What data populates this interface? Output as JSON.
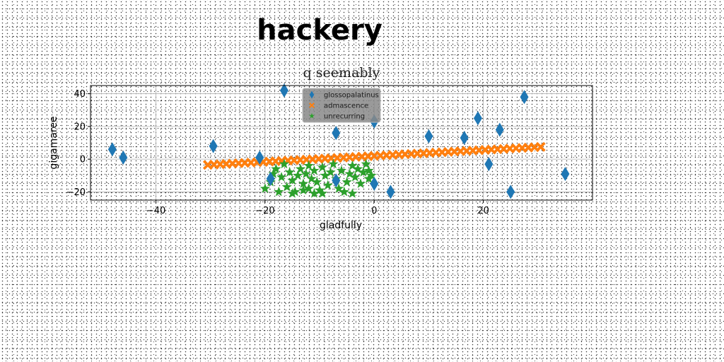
{
  "banner": {
    "title": "hackery"
  },
  "chart_data": {
    "type": "scatter",
    "title": "q seemably",
    "xlabel": "gladfully",
    "ylabel": "gigamaree",
    "xlim": [
      -52,
      40
    ],
    "ylim": [
      -25,
      45
    ],
    "xticks": [
      -40,
      -20,
      0,
      20
    ],
    "yticks": [
      -20,
      0,
      20,
      40
    ],
    "xtick_labels": [
      "−40",
      "−20",
      "0",
      "20"
    ],
    "ytick_labels": [
      "−20",
      "0",
      "20",
      "40"
    ],
    "grid": true,
    "legend_position": "top-center",
    "series": [
      {
        "name": "glossopalatinus",
        "marker": "thin-diamond",
        "color": "#1f77b4",
        "points": [
          [
            -48,
            6
          ],
          [
            -46,
            1
          ],
          [
            -29.5,
            8
          ],
          [
            -21,
            1
          ],
          [
            -19,
            -12
          ],
          [
            -16.5,
            42
          ],
          [
            -7,
            16
          ],
          [
            -7,
            -13
          ],
          [
            0,
            23
          ],
          [
            0,
            -15
          ],
          [
            3,
            -20
          ],
          [
            10,
            14
          ],
          [
            16.5,
            13
          ],
          [
            19,
            25
          ],
          [
            21,
            -3
          ],
          [
            23,
            18
          ],
          [
            25,
            -20
          ],
          [
            27.5,
            38
          ],
          [
            35,
            -9
          ]
        ]
      },
      {
        "name": "admascence",
        "marker": "x",
        "color": "#ff7f0e",
        "x_start": -30.5,
        "x_end": 30.5,
        "y_start": -3.5,
        "y_end": 7.5,
        "count": 55
      },
      {
        "name": "unrecurring",
        "marker": "star",
        "color": "#2ca02c",
        "points": [
          [
            -20,
            -18
          ],
          [
            -19,
            -14
          ],
          [
            -18,
            -6
          ],
          [
            -17.5,
            -20
          ],
          [
            -17,
            -11
          ],
          [
            -16.5,
            -3
          ],
          [
            -16,
            -17
          ],
          [
            -15.5,
            -8
          ],
          [
            -15,
            -13
          ],
          [
            -14.5,
            -20
          ],
          [
            -14,
            -10
          ],
          [
            -13.5,
            -6
          ],
          [
            -13,
            -15
          ],
          [
            -13,
            -19
          ],
          [
            -12.5,
            -9
          ],
          [
            -12,
            -4
          ],
          [
            -12,
            -18
          ],
          [
            -11.5,
            -12
          ],
          [
            -11,
            -7
          ],
          [
            -10.5,
            -14
          ],
          [
            -10,
            -19
          ],
          [
            -9.5,
            -5
          ],
          [
            -9,
            -10
          ],
          [
            -8.5,
            -16
          ],
          [
            -8,
            -8
          ],
          [
            -7.5,
            -3
          ],
          [
            -7,
            -12
          ],
          [
            -6.5,
            -18
          ],
          [
            -6,
            -7
          ],
          [
            -5.5,
            -20
          ],
          [
            -5,
            -14
          ],
          [
            -4.5,
            -9
          ],
          [
            -4,
            -4
          ],
          [
            -3.5,
            -11
          ],
          [
            -3,
            -6
          ],
          [
            -2.5,
            -15
          ],
          [
            -2,
            -8
          ],
          [
            -1.5,
            -3
          ],
          [
            -1,
            -12
          ],
          [
            -1,
            -7
          ],
          [
            -0.5,
            -10
          ],
          [
            -15,
            -21
          ],
          [
            -11,
            -21
          ],
          [
            -4,
            -21
          ],
          [
            -18.5,
            -9
          ],
          [
            -9.5,
            -21
          ]
        ]
      }
    ]
  }
}
